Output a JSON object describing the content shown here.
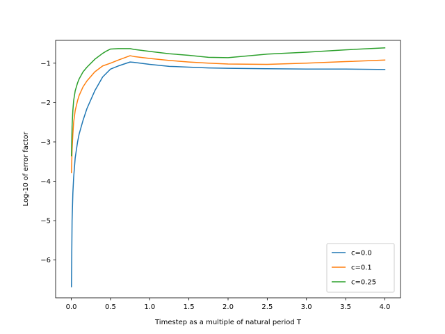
{
  "chart_data": {
    "type": "line",
    "title": "",
    "xlabel": "Timestep as a multiple of natural period T",
    "ylabel": "Log-10 of error factor",
    "xlim": [
      -0.2,
      4.2
    ],
    "ylim": [
      -6.96,
      -0.42
    ],
    "grid": false,
    "legend_position": "lower right",
    "x_ticks": [
      0.0,
      0.5,
      1.0,
      1.5,
      2.0,
      2.5,
      3.0,
      3.5,
      4.0
    ],
    "x_tick_labels": [
      "0.0",
      "0.5",
      "1.0",
      "1.5",
      "2.0",
      "2.5",
      "3.0",
      "3.5",
      "4.0"
    ],
    "y_ticks": [
      -6,
      -5,
      -4,
      -3,
      -2,
      -1
    ],
    "y_tick_labels": [
      "−6",
      "−5",
      "−4",
      "−3",
      "−2",
      "−1"
    ],
    "series": [
      {
        "name": "c=0.0",
        "color": "#1f77b4",
        "x": [
          0.002,
          0.01,
          0.02,
          0.03,
          0.05,
          0.08,
          0.1,
          0.15,
          0.2,
          0.3,
          0.4,
          0.5,
          0.6,
          0.75,
          0.8,
          1.0,
          1.25,
          1.5,
          1.75,
          2.0,
          2.5,
          3.0,
          3.5,
          4.0
        ],
        "y": [
          -6.68,
          -5.0,
          -4.3,
          -3.9,
          -3.4,
          -3.0,
          -2.8,
          -2.45,
          -2.15,
          -1.7,
          -1.35,
          -1.15,
          -1.07,
          -0.97,
          -0.98,
          -1.03,
          -1.08,
          -1.1,
          -1.12,
          -1.13,
          -1.14,
          -1.15,
          -1.15,
          -1.16
        ]
      },
      {
        "name": "c=0.1",
        "color": "#ff7f0e",
        "x": [
          0.002,
          0.01,
          0.02,
          0.03,
          0.05,
          0.08,
          0.1,
          0.15,
          0.2,
          0.3,
          0.4,
          0.5,
          0.6,
          0.75,
          0.8,
          1.0,
          1.25,
          1.5,
          1.75,
          2.0,
          2.5,
          3.0,
          3.5,
          4.0
        ],
        "y": [
          -3.78,
          -3.2,
          -2.8,
          -2.5,
          -2.2,
          -1.95,
          -1.82,
          -1.6,
          -1.45,
          -1.22,
          -1.07,
          -1.0,
          -0.92,
          -0.81,
          -0.83,
          -0.88,
          -0.93,
          -0.97,
          -1.0,
          -1.02,
          -1.03,
          -1.0,
          -0.96,
          -0.92
        ]
      },
      {
        "name": "c=0.25",
        "color": "#2ca02c",
        "x": [
          0.002,
          0.01,
          0.02,
          0.03,
          0.05,
          0.08,
          0.1,
          0.15,
          0.2,
          0.3,
          0.4,
          0.45,
          0.5,
          0.6,
          0.75,
          0.8,
          1.0,
          1.25,
          1.5,
          1.75,
          2.0,
          2.5,
          3.0,
          3.5,
          4.0
        ],
        "y": [
          -3.35,
          -2.6,
          -2.2,
          -1.95,
          -1.7,
          -1.5,
          -1.4,
          -1.22,
          -1.1,
          -0.9,
          -0.75,
          -0.69,
          -0.64,
          -0.63,
          -0.63,
          -0.65,
          -0.7,
          -0.76,
          -0.8,
          -0.85,
          -0.86,
          -0.77,
          -0.72,
          -0.66,
          -0.61
        ]
      }
    ]
  }
}
